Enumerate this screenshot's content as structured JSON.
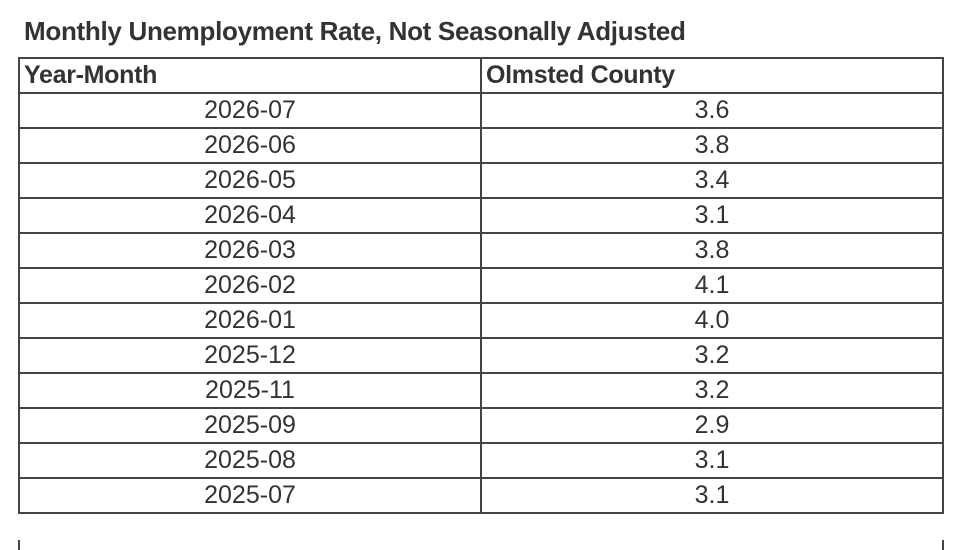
{
  "title": "Monthly Unemployment Rate, Not Seasonally Adjusted",
  "table": {
    "header": [
      "Year-Month",
      "Olmsted County"
    ],
    "rows": [
      [
        "2026-07",
        "3.6"
      ],
      [
        "2026-06",
        "3.8"
      ],
      [
        "2026-05",
        "3.4"
      ],
      [
        "2026-04",
        "3.1"
      ],
      [
        "2026-03",
        "3.8"
      ],
      [
        "2026-02",
        "4.1"
      ],
      [
        "2026-01",
        "4.0"
      ],
      [
        "2025-12",
        "3.2"
      ],
      [
        "2025-11",
        "3.2"
      ],
      [
        "2025-09",
        "2.9"
      ],
      [
        "2025-08",
        "3.1"
      ],
      [
        "2025-07",
        "3.1"
      ]
    ]
  }
}
